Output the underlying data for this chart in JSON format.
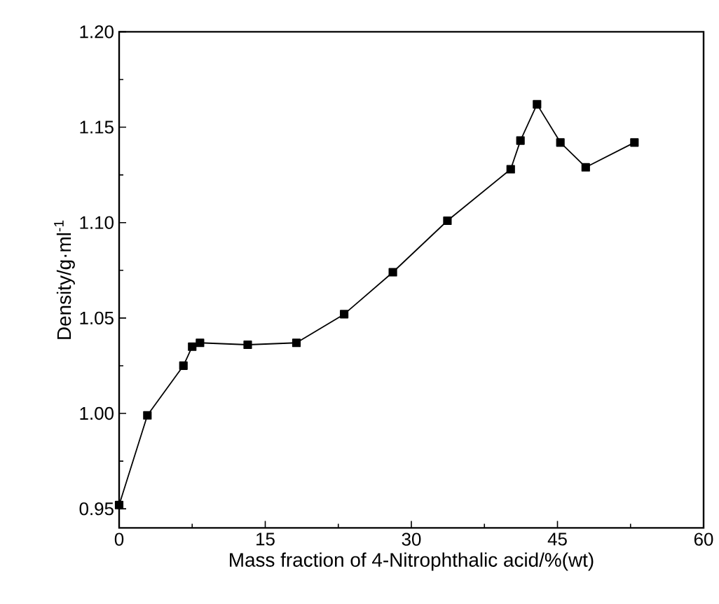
{
  "chart_data": {
    "type": "line",
    "xlabel": "Mass fraction of 4-Nitrophthalic acid/%(wt)",
    "ylabel": "Density/g·ml$^{-1}$",
    "x": [
      0,
      2.9,
      6.6,
      7.5,
      8.3,
      13.2,
      18.2,
      23.1,
      28.1,
      33.7,
      40.2,
      41.2,
      42.9,
      45.3,
      47.9,
      52.9
    ],
    "series": [
      {
        "color": "#000000",
        "values": [
          0.952,
          0.999,
          1.025,
          1.035,
          1.037,
          1.036,
          1.037,
          1.052,
          1.074,
          1.101,
          1.128,
          1.143,
          1.162,
          1.142,
          1.129,
          1.142
        ]
      }
    ],
    "xlim": [
      0,
      60
    ],
    "xticks": [
      0,
      15,
      30,
      45,
      60
    ],
    "ylim": [
      0.94,
      1.2
    ],
    "yticks": [
      {
        "value": 0.95,
        "label": "0.95"
      },
      {
        "value": 1.0,
        "label": "1.00"
      },
      {
        "value": 1.05,
        "label": "1.05"
      },
      {
        "value": 1.1,
        "label": "1.10"
      },
      {
        "value": 1.15,
        "label": "1.15"
      },
      {
        "value": 1.2,
        "label": "1.20"
      }
    ],
    "marker": "square",
    "line_style": "solid"
  }
}
